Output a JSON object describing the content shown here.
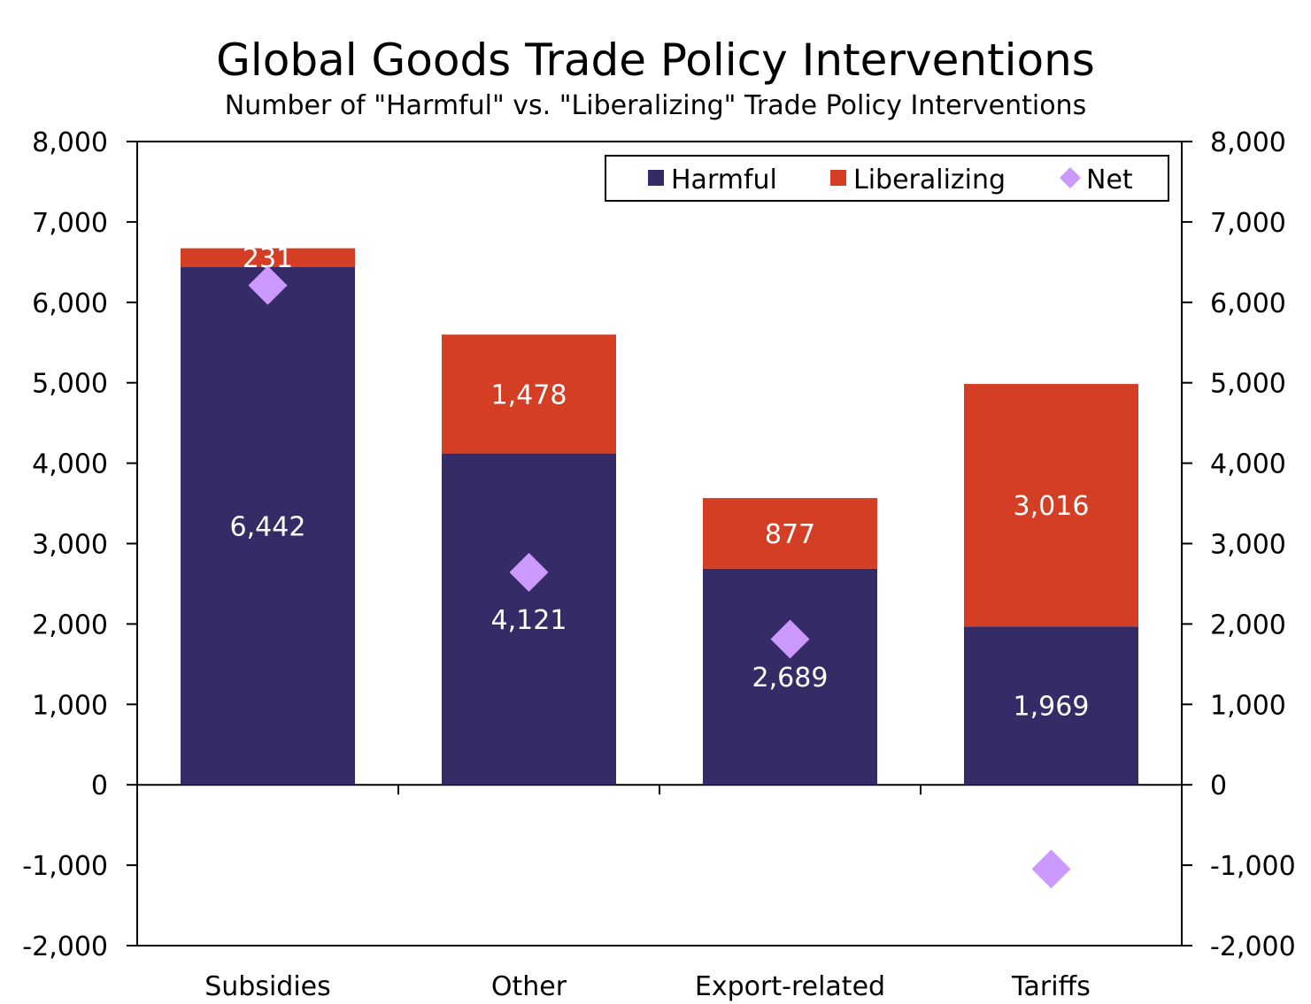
{
  "header": {
    "title": "Global Goods Trade Policy Interventions",
    "subtitle": "Number of \"Harmful\" vs. \"Liberalizing\" Trade Policy Interventions"
  },
  "colors": {
    "harmful": "#352b66",
    "liberalizing": "#d43e25",
    "net": "#cc99ff"
  },
  "chart_data": {
    "type": "bar",
    "stacked": true,
    "title": "Global Goods Trade Policy Interventions",
    "subtitle": "Number of \"Harmful\" vs. \"Liberalizing\" Trade Policy Interventions",
    "categories": [
      "Subsidies",
      "Other",
      "Export-related",
      "Tariffs"
    ],
    "series": [
      {
        "name": "Harmful",
        "kind": "bar",
        "values": [
          6442,
          4121,
          2689,
          1969
        ],
        "labels": [
          "6,442",
          "4,121",
          "2,689",
          "1,969"
        ]
      },
      {
        "name": "Liberalizing",
        "kind": "bar",
        "values": [
          231,
          1478,
          877,
          3016
        ],
        "labels": [
          "231",
          "1,478",
          "877",
          "3,016"
        ]
      },
      {
        "name": "Net",
        "kind": "marker",
        "values": [
          6211,
          2643,
          1812,
          -1047
        ]
      }
    ],
    "ylim": [
      -2000,
      8000
    ],
    "yticks": [
      8000,
      7000,
      6000,
      5000,
      4000,
      3000,
      2000,
      1000,
      0,
      -1000,
      -2000
    ],
    "ytick_labels": [
      "8,000",
      "7,000",
      "6,000",
      "5,000",
      "4,000",
      "3,000",
      "2,000",
      "1,000",
      "0",
      "-1,000",
      "-2,000"
    ],
    "secondary_y": true,
    "xlabel": "",
    "ylabel": "",
    "legend": {
      "position": "top-right",
      "entries": [
        "Harmful",
        "Liberalizing",
        "Net"
      ]
    },
    "grid": false
  }
}
